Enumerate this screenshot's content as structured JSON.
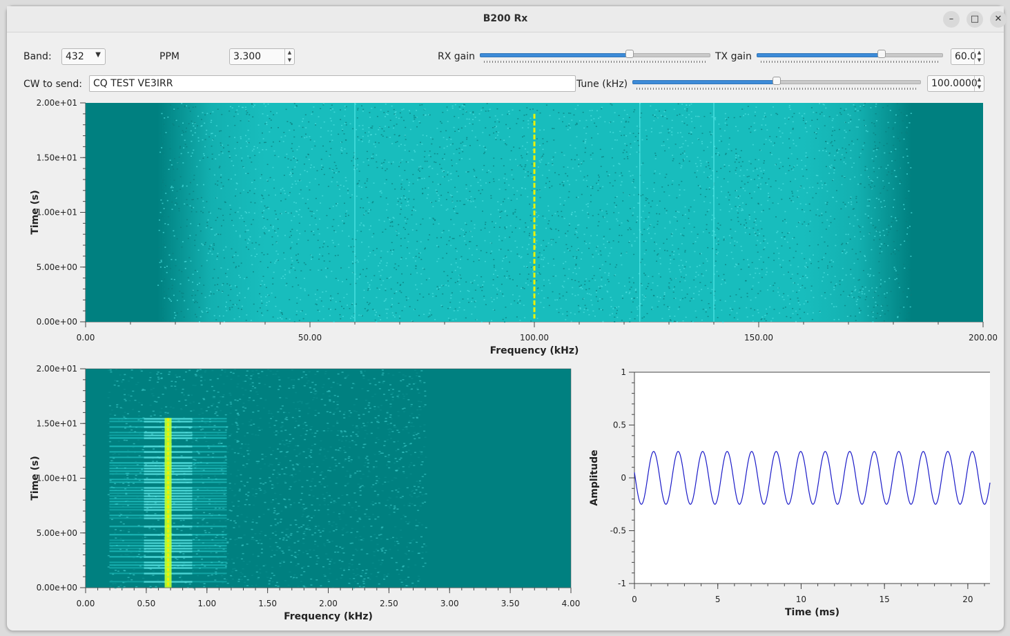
{
  "window": {
    "title": "B200 Rx"
  },
  "controls": {
    "band_label": "Band:",
    "band_value": "432",
    "ppm_label": "PPM",
    "ppm_value": "3.300",
    "rx_gain_label": "RX gain",
    "rx_gain_level": 0.65,
    "tx_gain_label": "TX gain",
    "tx_gain_level": 0.67,
    "tx_gain_value": "60.0",
    "cw_label": "CW to send:",
    "cw_value": "CQ TEST VE3IRR",
    "tune_label": "Tune (kHz)",
    "tune_level": 0.5,
    "tune_value": "100.0000"
  },
  "chart_data": [
    {
      "type": "heatmap",
      "xlabel": "Frequency (kHz)",
      "ylabel": "Time (s)",
      "xlim": [
        0,
        200
      ],
      "ylim": [
        0,
        20
      ],
      "x_ticks": [
        {
          "v": 0,
          "label": "0.00"
        },
        {
          "v": 50,
          "label": "50.00"
        },
        {
          "v": 100,
          "label": "100.00"
        },
        {
          "v": 150,
          "label": "150.00"
        },
        {
          "v": 200,
          "label": "200.00"
        }
      ],
      "y_ticks": [
        {
          "v": 0,
          "label": "0.00e+00"
        },
        {
          "v": 5,
          "label": "5.00e+00"
        },
        {
          "v": 10,
          "label": "1.00e+01"
        },
        {
          "v": 15,
          "label": "1.50e+01"
        },
        {
          "v": 20,
          "label": "2.00e+01"
        }
      ],
      "passband_khz": [
        16,
        184
      ],
      "signal_khz": 100,
      "spurs_khz": [
        60,
        123.5,
        140
      ],
      "colors": {
        "background": "#008080",
        "noise": "#20c8c8",
        "signal": "#f0f000"
      }
    },
    {
      "type": "heatmap",
      "xlabel": "Frequency (kHz)",
      "ylabel": "Time (s)",
      "xlim": [
        0,
        4
      ],
      "ylim": [
        0,
        20
      ],
      "x_ticks": [
        {
          "v": 0,
          "label": "0.00"
        },
        {
          "v": 0.5,
          "label": "0.50"
        },
        {
          "v": 1,
          "label": "1.00"
        },
        {
          "v": 1.5,
          "label": "1.50"
        },
        {
          "v": 2,
          "label": "2.00"
        },
        {
          "v": 2.5,
          "label": "2.50"
        },
        {
          "v": 3,
          "label": "3.00"
        },
        {
          "v": 3.5,
          "label": "3.50"
        },
        {
          "v": 4,
          "label": "4.00"
        }
      ],
      "y_ticks": [
        {
          "v": 0,
          "label": "0.00e+00"
        },
        {
          "v": 5,
          "label": "5.00e+00"
        },
        {
          "v": 10,
          "label": "1.00e+01"
        },
        {
          "v": 15,
          "label": "1.50e+01"
        },
        {
          "v": 20,
          "label": "2.00e+01"
        }
      ],
      "passband_khz": [
        0.18,
        2.8
      ],
      "tone_khz": 0.68,
      "tone_end_s": 15.5,
      "colors": {
        "background": "#008080",
        "noise": "#20c8c8",
        "signal": "#f0f000"
      }
    },
    {
      "type": "line",
      "xlabel": "Time (ms)",
      "ylabel": "Amplitude",
      "xlim": [
        0,
        21.33
      ],
      "ylim": [
        -1,
        1
      ],
      "x_ticks": [
        {
          "v": 0,
          "label": "0"
        },
        {
          "v": 5,
          "label": "5"
        },
        {
          "v": 10,
          "label": "10"
        },
        {
          "v": 15,
          "label": "15"
        },
        {
          "v": 20,
          "label": "20"
        }
      ],
      "y_ticks": [
        {
          "v": 1,
          "label": "1"
        },
        {
          "v": 0.5,
          "label": "0.5"
        },
        {
          "v": 0,
          "label": "0"
        },
        {
          "v": -0.5,
          "label": "-0.5"
        },
        {
          "v": -1,
          "label": "-1"
        }
      ],
      "series": [
        {
          "amplitude": 0.25,
          "frequency_khz": 0.68,
          "phase_deg": 78,
          "color": "#1a1ac8"
        }
      ]
    }
  ]
}
